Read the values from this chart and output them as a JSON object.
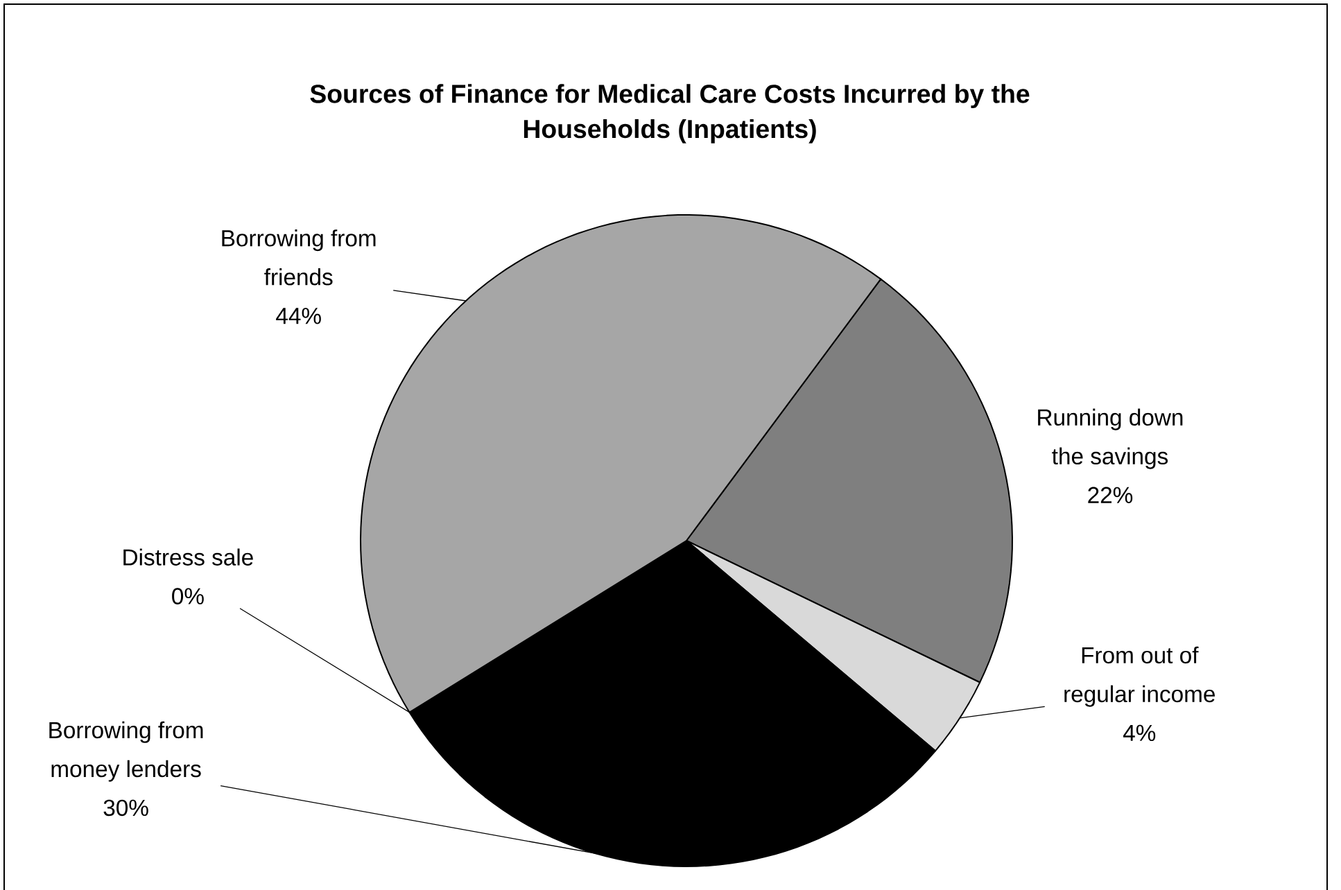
{
  "chart_data": {
    "type": "pie",
    "title": "Sources of Finance for  Medical Care Costs Incurred by the Households (Inpatients)",
    "categories": [
      "Running down the savings",
      "From out of regular income",
      "Borrowing from money lenders",
      "Distress sale",
      "Borrowing from friends"
    ],
    "values": [
      22,
      4,
      30,
      0,
      44
    ],
    "value_labels": [
      "22%",
      "4%",
      "30%",
      "0%",
      "44%"
    ],
    "colors": [
      "#7f7f7f",
      "#d9d9d9",
      "#000000",
      "#404040",
      "#a6a6a6"
    ]
  }
}
